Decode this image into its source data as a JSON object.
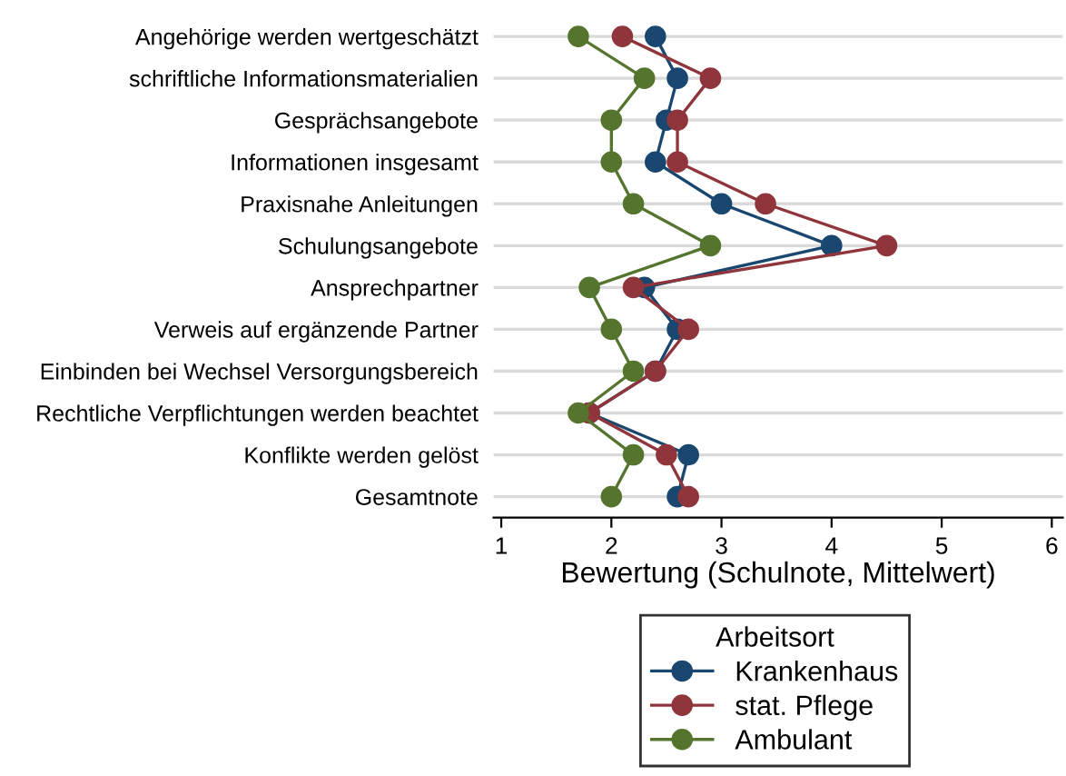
{
  "chart_data": {
    "type": "line",
    "orientation": "horizontal",
    "xlabel": "Bewertung (Schulnote, Mittelwert)",
    "legend_title": "Arbeitsort",
    "categories": [
      "Angehörige werden wertgeschätzt",
      "schriftliche Informationsmaterialien",
      "Gesprächsangebote",
      "Informationen insgesamt",
      "Praxisnahe Anleitungen",
      "Schulungsangebote",
      "Ansprechpartner",
      "Verweis auf ergänzende Partner",
      "Einbinden bei Wechsel Versorgungsbereich",
      "Rechtliche Verpflichtungen werden beachtet",
      "Konflikte werden gelöst",
      "Gesamtnote"
    ],
    "series": [
      {
        "name": "Krankenhaus",
        "color": "#1a476f",
        "values": [
          2.4,
          2.6,
          2.5,
          2.4,
          3.0,
          4.0,
          2.3,
          2.6,
          2.4,
          1.8,
          2.7,
          2.6
        ]
      },
      {
        "name": "stat. Pflege",
        "color": "#90353b",
        "values": [
          2.1,
          2.9,
          2.6,
          2.6,
          3.4,
          4.5,
          2.2,
          2.7,
          2.4,
          1.8,
          2.5,
          2.7
        ]
      },
      {
        "name": "Ambulant",
        "color": "#55752f",
        "values": [
          1.7,
          2.3,
          2.0,
          2.0,
          2.2,
          2.9,
          1.8,
          2.0,
          2.2,
          1.7,
          2.2,
          2.0
        ]
      }
    ],
    "xlim": [
      0.93,
      6.1
    ],
    "xticks": [
      1,
      2,
      3,
      4,
      5,
      6
    ],
    "grid": "y",
    "legend": "bottom",
    "marker": "circle",
    "line_style": "solid"
  }
}
